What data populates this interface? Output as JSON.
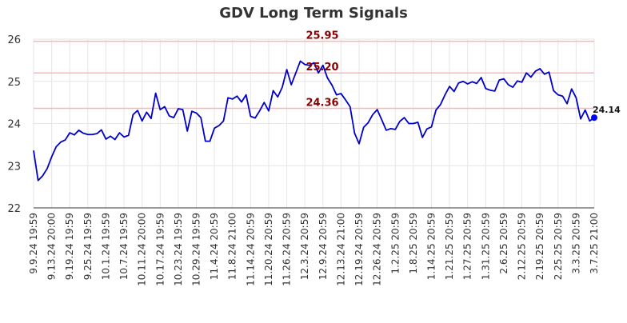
{
  "chart_data": {
    "type": "line",
    "title": "GDV Long Term Signals",
    "xlabel": "",
    "ylabel": "",
    "ylim": [
      22,
      26
    ],
    "y_ticks": [
      "22",
      "23",
      "24",
      "25",
      "26"
    ],
    "x_tick_labels": [
      "9.9.24 19:59",
      "9.13.24 20:00",
      "9.19.24 19:59",
      "9.25.24 19:59",
      "10.1.24 19:59",
      "10.7.24 19:59",
      "10.11.24 20:00",
      "10.17.24 19:59",
      "10.23.24 19:59",
      "10.29.24 19:59",
      "11.4.24 20:59",
      "11.8.24 21:00",
      "11.14.24 20:59",
      "11.20.24 20:59",
      "11.26.24 20:59",
      "12.3.24 20:59",
      "12.9.24 20:59",
      "12.13.24 21:00",
      "12.19.24 20:59",
      "12.26.24 20:59",
      "1.2.25 20:59",
      "1.8.25 20:59",
      "1.14.25 20:59",
      "1.21.25 20:59",
      "1.27.25 20:59",
      "1.31.25 20:59",
      "2.6.25 20:59",
      "2.12.25 20:59",
      "2.19.25 20:59",
      "2.25.25 20:59",
      "3.3.25 20:59",
      "3.7.25 21:00"
    ],
    "grid": true,
    "legend": "none",
    "series": [
      {
        "color": "#0000cc",
        "values": [
          23.36,
          22.65,
          22.76,
          22.93,
          23.21,
          23.45,
          23.56,
          23.61,
          23.78,
          23.73,
          23.84,
          23.77,
          23.74,
          23.74,
          23.76,
          23.85,
          23.63,
          23.7,
          23.62,
          23.78,
          23.68,
          23.72,
          24.21,
          24.31,
          24.06,
          24.27,
          24.12,
          24.72,
          24.33,
          24.4,
          24.18,
          24.14,
          24.35,
          24.33,
          23.82,
          24.29,
          24.25,
          24.14,
          23.58,
          23.58,
          23.89,
          23.95,
          24.06,
          24.61,
          24.58,
          24.65,
          24.51,
          24.68,
          24.17,
          24.13,
          24.3,
          24.5,
          24.3,
          24.78,
          24.63,
          24.86,
          25.28,
          24.92,
          25.2,
          25.48,
          25.4,
          25.38,
          25.44,
          25.2,
          25.38,
          25.08,
          24.91,
          24.68,
          24.71,
          24.56,
          24.4,
          23.77,
          23.52,
          23.91,
          24.02,
          24.21,
          24.33,
          24.09,
          23.84,
          23.88,
          23.86,
          24.05,
          24.14,
          24.0,
          24.0,
          24.03,
          23.67,
          23.87,
          23.92,
          24.32,
          24.45,
          24.68,
          24.88,
          24.76,
          24.96,
          25.0,
          24.94,
          24.99,
          24.95,
          25.09,
          24.83,
          24.79,
          24.77,
          25.03,
          25.06,
          24.92,
          24.86,
          25.01,
          24.98,
          25.2,
          25.1,
          25.24,
          25.3,
          25.17,
          25.22,
          24.78,
          24.68,
          24.65,
          24.47,
          24.82,
          24.61,
          24.11,
          24.32,
          24.06,
          24.14
        ]
      }
    ],
    "reference_lines": [
      {
        "value": 25.95,
        "label": "25.95",
        "color": "#ffb3b3"
      },
      {
        "value": 25.2,
        "label": "25.20",
        "color": "#ffb3b3"
      },
      {
        "value": 24.36,
        "label": "24.36",
        "color": "#ffb3b3"
      }
    ],
    "reference_label_color": "#8b0000",
    "last_value": {
      "label": "24.14",
      "value": 24.14,
      "color": "#0000ff"
    }
  }
}
